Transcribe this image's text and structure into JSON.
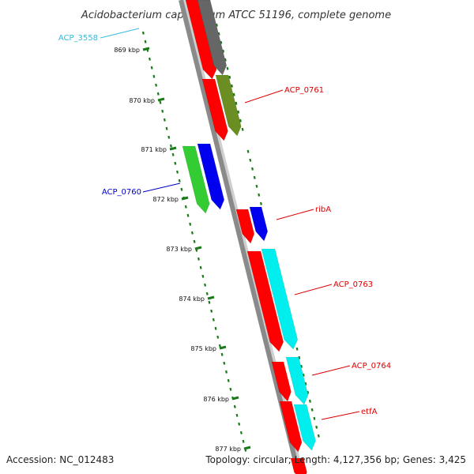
{
  "title": "Acidobacterium capsulatum ATCC 51196, complete genome",
  "footer": {
    "accession": "Accession: NC_012483",
    "topology": "Topology: circular; Length: 4,127,356 bp; Genes: 3,425"
  },
  "colors": {
    "backbone": "#8a8a8a",
    "tick": "#1a7a1a",
    "red": "#ff0000",
    "blue": "#0000ee",
    "green": "#33cc33",
    "cyan": "#00eeee",
    "gray": "#666666",
    "olive": "#6b8e23",
    "label_red": "#dd0000",
    "label_blue": "#0000cc",
    "label_cyan": "#33bbdd"
  },
  "ticks": [
    {
      "label": "869 kbp"
    },
    {
      "label": "870 kbp"
    },
    {
      "label": "871 kbp"
    },
    {
      "label": "872 kbp"
    },
    {
      "label": "873 kbp"
    },
    {
      "label": "874 kbp"
    },
    {
      "label": "875 kbp"
    },
    {
      "label": "876 kbp"
    },
    {
      "label": "877 kbp"
    }
  ],
  "gene_labels": [
    {
      "text": "ACP_3558",
      "color": "label_cyan"
    },
    {
      "text": "ACP_0761",
      "color": "label_red"
    },
    {
      "text": "ACP_0760",
      "color": "label_blue"
    },
    {
      "text": "ribA",
      "color": "label_red"
    },
    {
      "text": "ACP_0763",
      "color": "label_red"
    },
    {
      "text": "ACP_0764",
      "color": "label_red"
    },
    {
      "text": "etfA",
      "color": "label_red"
    }
  ]
}
